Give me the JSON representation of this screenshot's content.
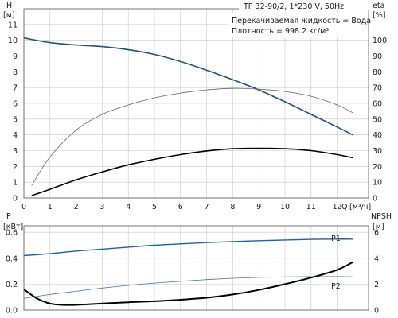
{
  "colors": {
    "head_curve": "#1f4e8c",
    "eta_curve": "#666666",
    "npsh_curve": "#000000",
    "p1_curve": "#1f5ea8",
    "p2_curve": "#3f73b8",
    "grid": "#c8c8c8"
  },
  "header": {
    "model": "TP 32-90/2, 1*230 V, 50Hz",
    "fluid": "Перекачиваемая жидкость = Вода",
    "density": "Плотность = 998.2 кг/м³"
  },
  "chart_data": [
    {
      "type": "line",
      "title": "",
      "xlabel": "Q [м³/ч]",
      "xlabel_name": "Q",
      "xlabel_unit": "[м³/ч]",
      "xlim": [
        0,
        13.2
      ],
      "xticks": [
        0,
        1,
        2,
        3,
        4,
        5,
        6,
        7,
        8,
        9,
        10,
        11,
        12
      ],
      "y_left": {
        "name": "H",
        "unit": "[м]",
        "lim": [
          0,
          12
        ],
        "ticks": [
          0,
          1,
          2,
          3,
          4,
          5,
          6,
          7,
          8,
          9,
          10,
          11
        ]
      },
      "y_right": {
        "name": "eta",
        "unit": "[%]",
        "lim": [
          0,
          120
        ],
        "ticks": [
          0,
          10,
          20,
          30,
          40,
          50,
          60,
          70,
          80,
          90,
          100
        ]
      },
      "grid": true,
      "series": [
        {
          "axis": "left",
          "x": [
            0,
            1,
            2,
            3,
            4,
            5,
            6,
            7,
            8,
            9,
            10,
            11,
            12,
            12.6
          ],
          "y": [
            10.15,
            9.85,
            9.7,
            9.6,
            9.4,
            9.1,
            8.65,
            8.1,
            7.5,
            6.85,
            6.1,
            5.3,
            4.5,
            4.0
          ]
        },
        {
          "axis": "right",
          "x": [
            0.3,
            1,
            2,
            3,
            4,
            5,
            6,
            7,
            8,
            9,
            10,
            11,
            12,
            12.6
          ],
          "y": [
            8,
            26,
            43,
            53,
            59,
            63.5,
            66.5,
            68.5,
            69.5,
            69,
            67.5,
            64.5,
            59,
            54
          ]
        },
        {
          "axis": "left",
          "x": [
            0.3,
            1,
            2,
            3,
            4,
            5,
            6,
            7,
            8,
            9,
            10,
            11,
            12,
            12.6
          ],
          "y": [
            0.15,
            0.55,
            1.15,
            1.65,
            2.1,
            2.45,
            2.75,
            2.98,
            3.12,
            3.15,
            3.12,
            3.0,
            2.75,
            2.55
          ]
        }
      ]
    },
    {
      "type": "line",
      "title": "",
      "xlim": [
        0,
        13.2
      ],
      "y_left": {
        "name": "P",
        "unit": "[кВт]",
        "lim": [
          0,
          0.65
        ],
        "ticks": [
          0.0,
          0.2,
          0.4,
          0.6
        ]
      },
      "y_right": {
        "name": "NPSH",
        "unit": "[м]",
        "lim": [
          0,
          6.5
        ],
        "ticks": [
          0,
          2,
          4,
          6
        ]
      },
      "grid": true,
      "series": [
        {
          "name": "P1",
          "axis": "left",
          "x": [
            0,
            1,
            2,
            3,
            4,
            5,
            6,
            7,
            8,
            9,
            10,
            11,
            12,
            12.6
          ],
          "y": [
            0.42,
            0.435,
            0.455,
            0.47,
            0.485,
            0.5,
            0.51,
            0.52,
            0.528,
            0.535,
            0.54,
            0.545,
            0.547,
            0.547
          ]
        },
        {
          "name": "P2",
          "axis": "left",
          "x": [
            0,
            1,
            2,
            3,
            4,
            5,
            6,
            7,
            8,
            9,
            10,
            11,
            12,
            12.6
          ],
          "y": [
            0.09,
            0.12,
            0.145,
            0.17,
            0.19,
            0.208,
            0.222,
            0.235,
            0.245,
            0.252,
            0.256,
            0.258,
            0.258,
            0.257
          ]
        },
        {
          "axis": "right",
          "x": [
            0,
            0.5,
            1,
            1.5,
            2,
            3,
            4,
            5,
            6,
            7,
            8,
            9,
            10,
            11,
            12,
            12.6
          ],
          "y": [
            1.6,
            0.9,
            0.5,
            0.4,
            0.4,
            0.5,
            0.6,
            0.68,
            0.8,
            0.95,
            1.2,
            1.55,
            2.0,
            2.5,
            3.1,
            3.7
          ]
        }
      ]
    }
  ]
}
